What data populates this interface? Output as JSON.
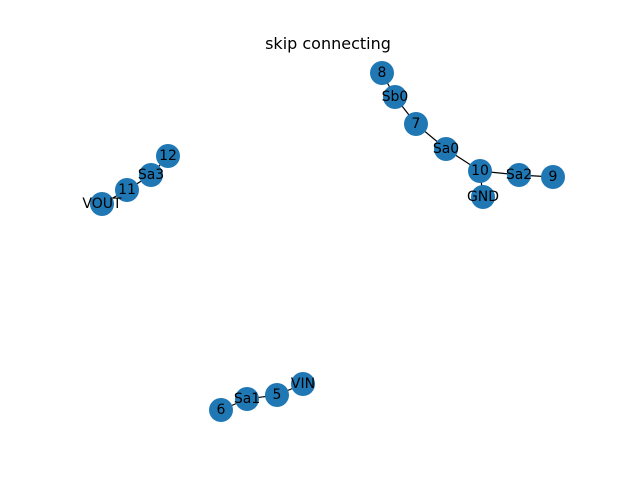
{
  "title": "skip connecting",
  "node_color": "#1f77b4",
  "edge_color": "#000000",
  "nodes": [
    {
      "id": "8",
      "label": "8"
    },
    {
      "id": "Sb0",
      "label": "Sb0"
    },
    {
      "id": "7",
      "label": "7"
    },
    {
      "id": "Sa0",
      "label": "Sa0"
    },
    {
      "id": "10",
      "label": "10"
    },
    {
      "id": "Sa2",
      "label": "Sa2"
    },
    {
      "id": "9",
      "label": "9"
    },
    {
      "id": "GND",
      "label": "GND"
    },
    {
      "id": "12",
      "label": "12"
    },
    {
      "id": "Sa3",
      "label": "Sa3"
    },
    {
      "id": "11",
      "label": "11"
    },
    {
      "id": "VOUT",
      "label": "VOUT"
    },
    {
      "id": "VIN",
      "label": "VIN"
    },
    {
      "id": "5",
      "label": "5"
    },
    {
      "id": "Sa1",
      "label": "Sa1"
    },
    {
      "id": "6",
      "label": "6"
    }
  ],
  "edges": [
    [
      "8",
      "Sb0"
    ],
    [
      "Sb0",
      "7"
    ],
    [
      "7",
      "Sa0"
    ],
    [
      "Sa0",
      "10"
    ],
    [
      "10",
      "Sa2"
    ],
    [
      "Sa2",
      "9"
    ],
    [
      "10",
      "GND"
    ],
    [
      "12",
      "Sa3"
    ],
    [
      "Sa3",
      "11"
    ],
    [
      "11",
      "VOUT"
    ],
    [
      "VIN",
      "5"
    ],
    [
      "5",
      "Sa1"
    ],
    [
      "Sa1",
      "6"
    ]
  ]
}
